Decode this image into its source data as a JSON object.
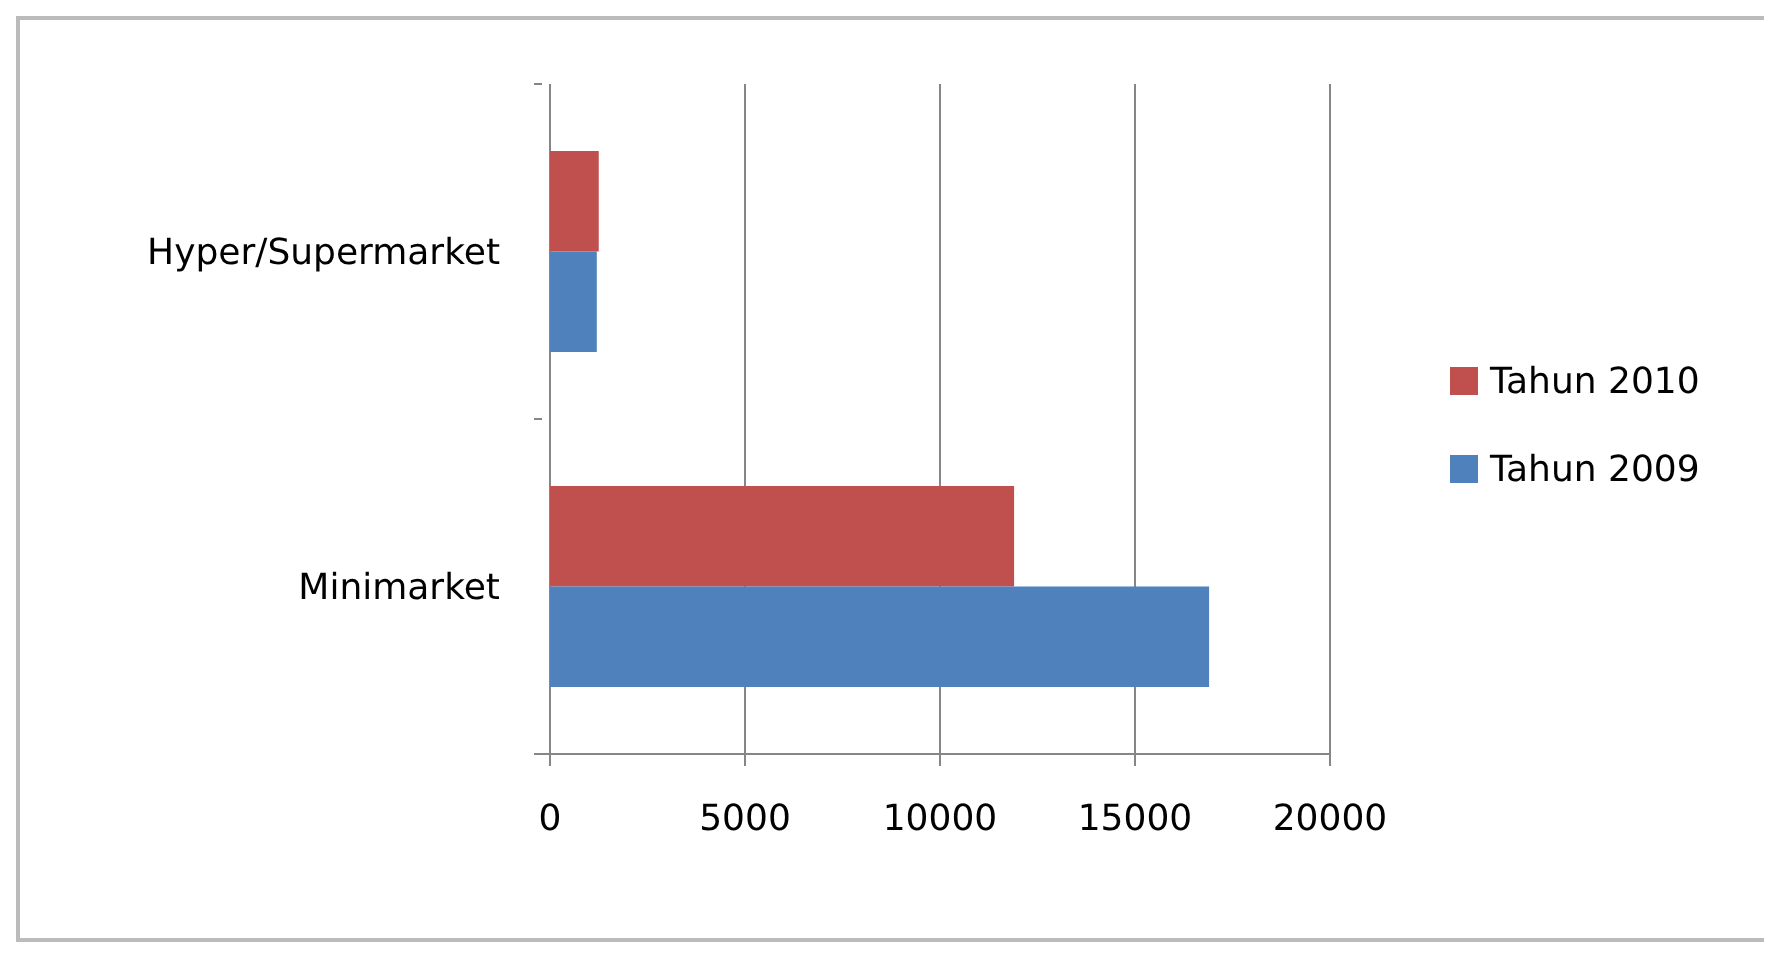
{
  "chart_data": {
    "type": "bar",
    "orientation": "horizontal",
    "categories": [
      "Hyper/Supermarket",
      "Minimarket"
    ],
    "series": [
      {
        "name": "Tahun 2010",
        "color": "#c0504d",
        "values": [
          1250,
          11900
        ]
      },
      {
        "name": "Tahun 2009",
        "color": "#4f81bd",
        "values": [
          1200,
          16900
        ]
      }
    ],
    "xlim": [
      0,
      20000
    ],
    "xticks": [
      0,
      5000,
      10000,
      15000,
      20000
    ],
    "grid": "x",
    "legend": "right"
  }
}
